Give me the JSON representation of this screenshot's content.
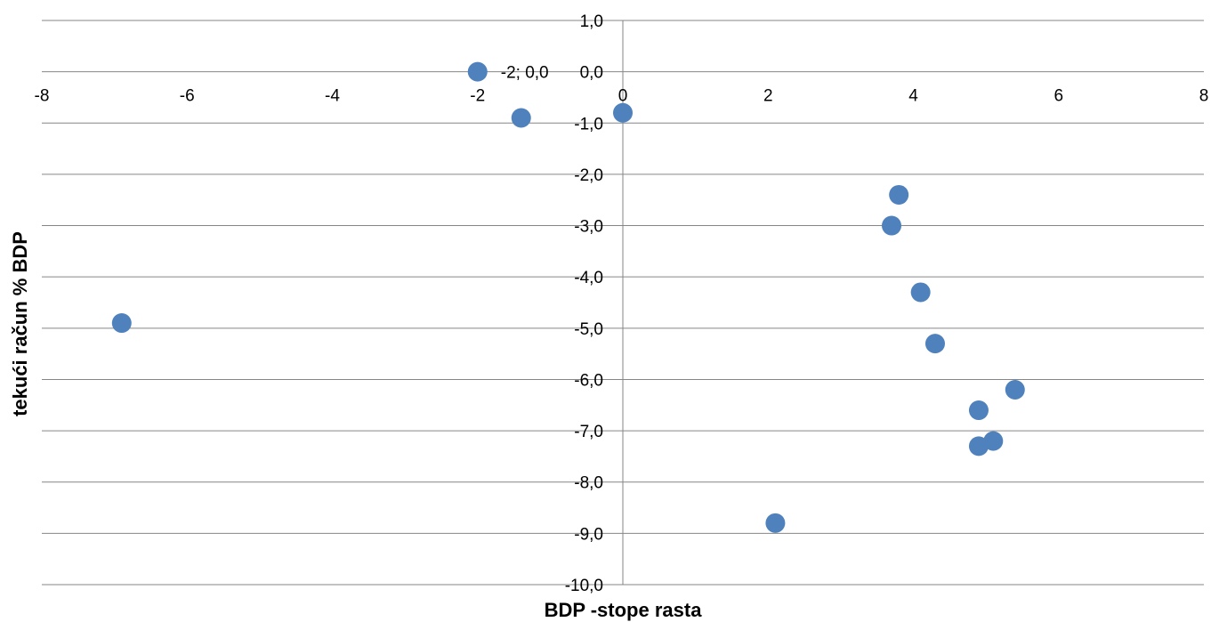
{
  "chart_data": {
    "type": "scatter",
    "title": "",
    "xlabel": "BDP -stope rasta",
    "ylabel": "tekući račun  % BDP",
    "xlim": [
      -8,
      8
    ],
    "ylim": [
      -10,
      1
    ],
    "grid": true,
    "x_ticks": [
      "-8",
      "-6",
      "-4",
      "-2",
      "0",
      "2",
      "4",
      "6",
      "8"
    ],
    "y_ticks": [
      "1,0",
      "0,0",
      "-1,0",
      "-2,0",
      "-3,0",
      "-4,0",
      "-5,0",
      "-6,0",
      "-7,0",
      "-8,0",
      "-9,0",
      "-10,0"
    ],
    "points": [
      {
        "x": -2.0,
        "y": 0.0,
        "label": "-2; 0,0"
      },
      {
        "x": -1.4,
        "y": -0.9
      },
      {
        "x": 0.0,
        "y": -0.8
      },
      {
        "x": -6.9,
        "y": -4.9
      },
      {
        "x": 3.8,
        "y": -2.4
      },
      {
        "x": 3.7,
        "y": -3.0
      },
      {
        "x": 4.1,
        "y": -4.3
      },
      {
        "x": 4.3,
        "y": -5.3
      },
      {
        "x": 5.4,
        "y": -6.2
      },
      {
        "x": 4.9,
        "y": -6.6
      },
      {
        "x": 5.1,
        "y": -7.2
      },
      {
        "x": 4.9,
        "y": -7.3
      },
      {
        "x": 2.1,
        "y": -8.8
      }
    ],
    "marker_color": "#4f81bd",
    "grid_color": "#868686"
  }
}
